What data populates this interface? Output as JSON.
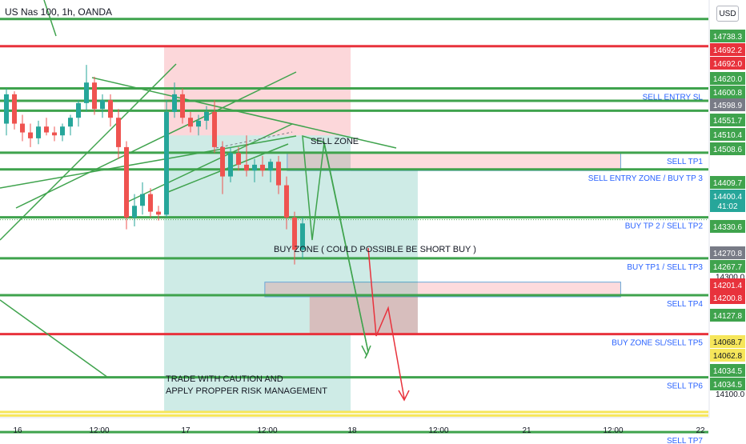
{
  "header": {
    "symbol": "US Nas 100, 1h, OANDA",
    "currency": "USD"
  },
  "colors": {
    "green": "#3fa34d",
    "red": "#e8323c",
    "yellow": "#f6e65a",
    "gray_badge": "#787b86",
    "label_blue": "#2962ff"
  },
  "chart_data": {
    "type": "candlestick",
    "yaxis": {
      "ticks": [
        14300.0,
        14100.0
      ],
      "range": [
        14000,
        14760
      ]
    },
    "xaxis": {
      "ticks": [
        "16",
        "12:00",
        "17",
        "12:00",
        "18",
        "12:00",
        "21",
        "12:00",
        "22"
      ]
    },
    "price_labels": [
      {
        "value": "14738.3",
        "color": "green"
      },
      {
        "value": "14692.2",
        "color": "red"
      },
      {
        "value": "14692.0",
        "color": "red"
      },
      {
        "value": "14620.0",
        "color": "green"
      },
      {
        "value": "14600.8",
        "color": "green"
      },
      {
        "value": "14598.9",
        "color": "gray"
      },
      {
        "value": "14551.7",
        "color": "green"
      },
      {
        "value": "14510.4",
        "color": "green"
      },
      {
        "value": "14508.6",
        "color": "green"
      },
      {
        "value": "14409.7",
        "color": "green"
      },
      {
        "value": "14400.4",
        "color": "teal",
        "sub": "41:02"
      },
      {
        "value": "14330.6",
        "color": "green"
      },
      {
        "value": "14270.8",
        "color": "gray"
      },
      {
        "value": "14267.7",
        "color": "green"
      },
      {
        "value": "14201.4",
        "color": "red"
      },
      {
        "value": "14200.8",
        "color": "red"
      },
      {
        "value": "14127.8",
        "color": "green"
      },
      {
        "value": "14068.7",
        "color": "yellow"
      },
      {
        "value": "14062.8",
        "color": "yellow"
      },
      {
        "value": "14034.5",
        "color": "green"
      },
      {
        "value": "14034.5",
        "color": "green"
      }
    ],
    "levels": [
      {
        "price": 14738.3,
        "color": "green",
        "label": ""
      },
      {
        "price": 14692.0,
        "color": "red",
        "label": ""
      },
      {
        "price": 14620.0,
        "color": "green",
        "label": "SELL ENTRY SL"
      },
      {
        "price": 14598.9,
        "color": "green",
        "label": ""
      },
      {
        "price": 14582.0,
        "color": "green",
        "label": ""
      },
      {
        "price": 14510.4,
        "color": "green",
        "label": "SELL TP1"
      },
      {
        "price": 14482.0,
        "color": "green",
        "label": "SELL ENTRY ZONE / BUY TP 3"
      },
      {
        "price": 14400.4,
        "color": "green",
        "label": "BUY TP 2 / SELL TP2"
      },
      {
        "price": 14330.6,
        "color": "green",
        "label": "BUY TP1 / SELL TP3"
      },
      {
        "price": 14267.7,
        "color": "green",
        "label": "SELL TP4"
      },
      {
        "price": 14201.4,
        "color": "red",
        "label": "BUY ZONE SL/SELL TP5"
      },
      {
        "price": 14127.8,
        "color": "green",
        "label": "SELL TP6"
      },
      {
        "price": 14068.7,
        "color": "yellow",
        "label": ""
      },
      {
        "price": 14062.8,
        "color": "yellow",
        "label": ""
      },
      {
        "price": 14034.5,
        "color": "green",
        "label": "SELL TP7"
      }
    ],
    "candles": [
      [
        14560,
        14620,
        14540,
        14610
      ],
      [
        14610,
        14615,
        14550,
        14560
      ],
      [
        14560,
        14575,
        14530,
        14545
      ],
      [
        14545,
        14560,
        14520,
        14535
      ],
      [
        14535,
        14565,
        14525,
        14555
      ],
      [
        14555,
        14570,
        14540,
        14545
      ],
      [
        14545,
        14555,
        14530,
        14540
      ],
      [
        14540,
        14560,
        14530,
        14555
      ],
      [
        14555,
        14575,
        14540,
        14570
      ],
      [
        14570,
        14600,
        14555,
        14595
      ],
      [
        14595,
        14660,
        14580,
        14630
      ],
      [
        14630,
        14640,
        14575,
        14585
      ],
      [
        14585,
        14610,
        14570,
        14600
      ],
      [
        14600,
        14610,
        14555,
        14570
      ],
      [
        14570,
        14585,
        14500,
        14520
      ],
      [
        14520,
        14530,
        14380,
        14400
      ],
      [
        14400,
        14440,
        14385,
        14420
      ],
      [
        14420,
        14460,
        14405,
        14440
      ],
      [
        14440,
        14450,
        14400,
        14410
      ],
      [
        14410,
        14420,
        14395,
        14405
      ],
      [
        14405,
        14600,
        14400,
        14580
      ],
      [
        14580,
        14630,
        14570,
        14610
      ],
      [
        14610,
        14620,
        14560,
        14570
      ],
      [
        14570,
        14580,
        14545,
        14555
      ],
      [
        14555,
        14575,
        14540,
        14565
      ],
      [
        14565,
        14590,
        14550,
        14580
      ],
      [
        14580,
        14600,
        14510,
        14520
      ],
      [
        14520,
        14530,
        14440,
        14470
      ],
      [
        14470,
        14520,
        14460,
        14510
      ],
      [
        14510,
        14520,
        14480,
        14490
      ],
      [
        14490,
        14540,
        14470,
        14480
      ],
      [
        14480,
        14500,
        14460,
        14490
      ],
      [
        14490,
        14505,
        14470,
        14480
      ],
      [
        14480,
        14500,
        14460,
        14495
      ],
      [
        14495,
        14505,
        14440,
        14455
      ],
      [
        14455,
        14470,
        14380,
        14400
      ],
      [
        14400,
        14410,
        14320,
        14345
      ],
      [
        14345,
        14400,
        14330,
        14390
      ]
    ],
    "zones": [
      {
        "kind": "sell-risk",
        "from": 14692,
        "to": 14540,
        "x0": 0.22,
        "x1": 0.47
      },
      {
        "kind": "sell-profit",
        "from": 14540,
        "to": 14070,
        "x0": 0.22,
        "x1": 0.47
      },
      {
        "kind": "sell-zone-box",
        "from": 14510,
        "to": 14480,
        "x0": 0.385,
        "x1": 0.832
      },
      {
        "kind": "buy-zone-box",
        "from": 14290,
        "to": 14265,
        "x0": 0.355,
        "x1": 0.832
      },
      {
        "kind": "buy-profit",
        "from": 14480,
        "to": 14400,
        "x0": 0.47,
        "x1": 0.56
      },
      {
        "kind": "buy-profit-low",
        "from": 14400,
        "to": 14200,
        "x0": 0.47,
        "x1": 0.56
      },
      {
        "kind": "buy-risk",
        "from": 14265,
        "to": 14200,
        "x0": 0.415,
        "x1": 0.56
      }
    ],
    "annotations": {
      "sell_zone": "SELL ZONE",
      "buy_zone": "BUY ZONE ( COULD POSSIBLE BE SHORT BUY )",
      "caution_line1": "TRADE WITH CAUTION AND",
      "caution_line2": "APPLY PROPPER RISK MANAGEMENT"
    }
  }
}
